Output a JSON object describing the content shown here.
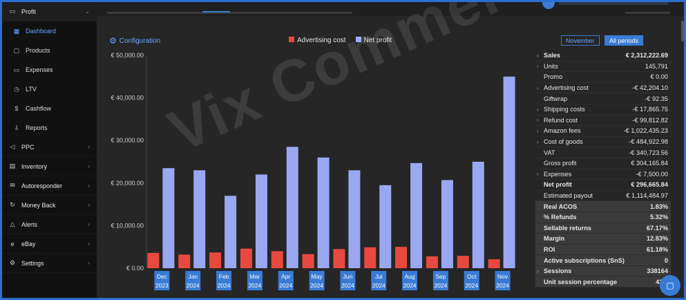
{
  "sidebar": {
    "profit_label": "Profit",
    "profit_items": [
      {
        "label": "Dashboard",
        "icon": "dashboard-icon"
      },
      {
        "label": "Products",
        "icon": "box-icon"
      },
      {
        "label": "Expenses",
        "icon": "card-icon"
      },
      {
        "label": "LTV",
        "icon": "clock-icon"
      },
      {
        "label": "Cashflow",
        "icon": "dollar-icon"
      },
      {
        "label": "Reports",
        "icon": "download-icon"
      }
    ],
    "sections": [
      {
        "label": "PPC",
        "icon": "megaphone-icon"
      },
      {
        "label": "Inventory",
        "icon": "inventory-icon"
      },
      {
        "label": "Autoresponder",
        "icon": "mail-icon"
      },
      {
        "label": "Money Back",
        "icon": "refresh-icon"
      },
      {
        "label": "Alerts",
        "icon": "bell-icon"
      },
      {
        "label": "eBay",
        "icon": "ebay-icon"
      },
      {
        "label": "Settings",
        "icon": "gear-icon"
      }
    ]
  },
  "config_label": "Configuration",
  "legend": {
    "cost_label": "Advertising cost",
    "profit_label": "Net profit"
  },
  "colors": {
    "cost": "#e8493f",
    "profit": "#9aa8f2",
    "accent": "#3a7bd5"
  },
  "periods": {
    "november": "November",
    "all": "All periods"
  },
  "watermark": "Vix Commerce",
  "stats": [
    {
      "label": "Sales",
      "value": "€ 2,312,222.69",
      "bold": true,
      "expand": true
    },
    {
      "label": "Units",
      "value": "145,791",
      "expand": true
    },
    {
      "label": "Promo",
      "value": "€ 0.00"
    },
    {
      "label": "Advertising cost",
      "value": "-€ 42,204.10",
      "expand": true
    },
    {
      "label": "Giftwrap",
      "value": "-€ 92.35"
    },
    {
      "label": "Shipping costs",
      "value": "-€ 17,865.75",
      "expand": true
    },
    {
      "label": "Refund cost",
      "value": "-€ 99,812.82",
      "expand": true
    },
    {
      "label": "Amazon fees",
      "value": "-€ 1,022,435.23",
      "expand": true
    },
    {
      "label": "Cost of goods",
      "value": "-€ 484,922.98",
      "expand": true
    },
    {
      "label": "VAT",
      "value": "-€ 340,723.56"
    },
    {
      "label": "Gross profit",
      "value": "€ 304,165.84"
    },
    {
      "label": "Expenses",
      "value": "-€ 7,500.00",
      "expand": true
    },
    {
      "label": "Net profit",
      "value": "€ 296,665.84",
      "bold": true
    },
    {
      "label": "Estimated payout",
      "value": "€ 1,114,484.97"
    },
    {
      "label": "Real ACOS",
      "value": "1.83%",
      "bold": true,
      "grey": true
    },
    {
      "label": "% Refunds",
      "value": "5.32%",
      "bold": true,
      "grey": true
    },
    {
      "label": "Sellable returns",
      "value": "67.17%",
      "bold": true,
      "grey": true
    },
    {
      "label": "Margin",
      "value": "12.83%",
      "bold": true,
      "grey": true
    },
    {
      "label": "ROI",
      "value": "61.18%",
      "bold": true,
      "grey": true
    },
    {
      "label": "Active subscriptions (SnS)",
      "value": "0",
      "bold": true,
      "grey": true
    },
    {
      "label": "Sessions",
      "value": "338164",
      "bold": true,
      "grey": true,
      "expand": true
    },
    {
      "label": "Unit session percentage",
      "value": "43.1",
      "bold": true,
      "grey": true
    }
  ],
  "chart_data": {
    "type": "bar",
    "categories": [
      [
        "Dec",
        "2023"
      ],
      [
        "Jan",
        "2024"
      ],
      [
        "Feb",
        "2024"
      ],
      [
        "Mar",
        "2024"
      ],
      [
        "Apr",
        "2024"
      ],
      [
        "May",
        "2024"
      ],
      [
        "Jun",
        "2024"
      ],
      [
        "Jul",
        "2024"
      ],
      [
        "Aug",
        "2024"
      ],
      [
        "Sep",
        "2024"
      ],
      [
        "Oct",
        "2024"
      ],
      [
        "Nov",
        "2024"
      ]
    ],
    "series": [
      {
        "name": "Advertising cost",
        "values": [
          3600,
          3200,
          3700,
          4600,
          4000,
          3300,
          4500,
          4900,
          5000,
          2800,
          2900,
          2100
        ]
      },
      {
        "name": "Net profit",
        "values": [
          23500,
          23000,
          17000,
          22000,
          28500,
          26000,
          23000,
          19500,
          24700,
          20700,
          25000,
          45000
        ]
      }
    ],
    "yticks": [
      "€ 0.00",
      "€ 10,000.00",
      "€ 20,000.00",
      "€ 30,000.00",
      "€ 40,000.00",
      "€ 50,000.00"
    ],
    "ylim": [
      0,
      50000
    ],
    "grid": false,
    "legend": "top-center"
  }
}
